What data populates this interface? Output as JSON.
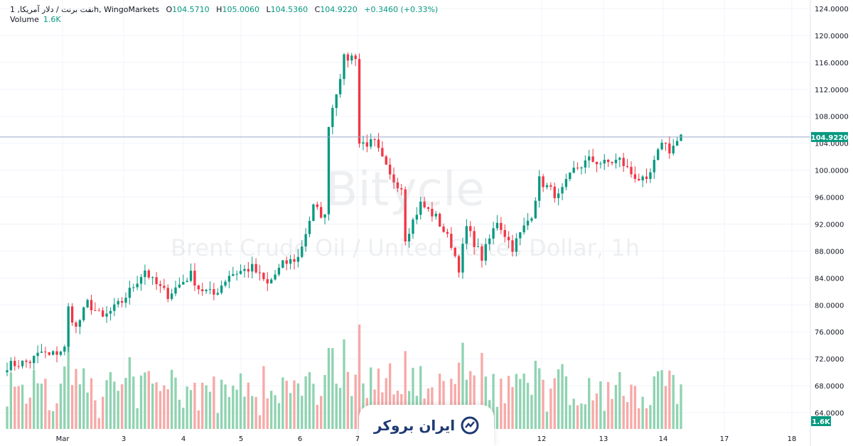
{
  "legend": {
    "symbol": "نفت برنت / دلار آمریکا, 1h, WingoMarkets",
    "open_label": "O",
    "open": "104.5710",
    "high_label": "H",
    "high": "105.0060",
    "low_label": "L",
    "low": "104.5360",
    "close_label": "C",
    "close": "104.9220",
    "change": "+0.3460 (+0.33%)"
  },
  "volume_legend": {
    "label": "Volume",
    "value": "1.6K"
  },
  "watermark": {
    "line1": "Bitycle",
    "line2": "Brent Crude Oil / United States Dollar, 1h"
  },
  "logo": {
    "text": "ایران بروکر",
    "icon": "chart-growth-icon"
  },
  "colors": {
    "up": "#089981",
    "down": "#f23645",
    "vol_up": "#8fd3b1",
    "vol_down": "#f7a9a7",
    "last_price_bg": "#089981"
  },
  "chart_data": {
    "type": "candlestick",
    "ylim": [
      62,
      124
    ],
    "y_ticks": [
      "124.0000",
      "120.0000",
      "116.0000",
      "112.0000",
      "108.0000",
      "104.0000",
      "100.0000",
      "96.0000",
      "92.0000",
      "88.0000",
      "84.0000",
      "80.0000",
      "76.0000",
      "72.0000",
      "68.0000",
      "64.0000"
    ],
    "x_ticks": [
      "Mar",
      "3",
      "4",
      "5",
      "6",
      "7",
      "12",
      "13",
      "14",
      "17",
      "18"
    ],
    "last_price": "104.9220",
    "last_volume": "1.6K",
    "anchors": [
      [
        0,
        71.0
      ],
      [
        6,
        71.6
      ],
      [
        9,
        73.0
      ],
      [
        11,
        72.4
      ],
      [
        15,
        73.5
      ],
      [
        16,
        79.5
      ],
      [
        18,
        76.5
      ],
      [
        21,
        80.3
      ],
      [
        25,
        78.0
      ],
      [
        30,
        80.5
      ],
      [
        36,
        85.2
      ],
      [
        38,
        83.5
      ],
      [
        42,
        81.5
      ],
      [
        48,
        84.5
      ],
      [
        50,
        82.5
      ],
      [
        54,
        81.5
      ],
      [
        58,
        84.5
      ],
      [
        64,
        85.5
      ],
      [
        68,
        83.0
      ],
      [
        72,
        86.0
      ],
      [
        76,
        87.0
      ],
      [
        80,
        94.5
      ],
      [
        83,
        93.0
      ],
      [
        84,
        107.0
      ],
      [
        88,
        116.5
      ],
      [
        91,
        117.0
      ],
      [
        92,
        104.0
      ],
      [
        96,
        104.0
      ],
      [
        100,
        99.0
      ],
      [
        103,
        97.5
      ],
      [
        104,
        90.0
      ],
      [
        108,
        95.0
      ],
      [
        112,
        93.0
      ],
      [
        116,
        89.0
      ],
      [
        118,
        85.5
      ],
      [
        120,
        91.5
      ],
      [
        124,
        87.0
      ],
      [
        128,
        92.5
      ],
      [
        132,
        88.5
      ],
      [
        137,
        93.5
      ],
      [
        139,
        98.5
      ],
      [
        142,
        97.0
      ],
      [
        144,
        96.0
      ],
      [
        148,
        100.0
      ],
      [
        152,
        101.5
      ],
      [
        156,
        101.0
      ],
      [
        160,
        101.5
      ],
      [
        163,
        99.5
      ],
      [
        167,
        98.0
      ],
      [
        170,
        102.5
      ],
      [
        171,
        104.5
      ],
      [
        173,
        103.0
      ],
      [
        176,
        104.9
      ]
    ],
    "volume_max_K": 6.0
  }
}
